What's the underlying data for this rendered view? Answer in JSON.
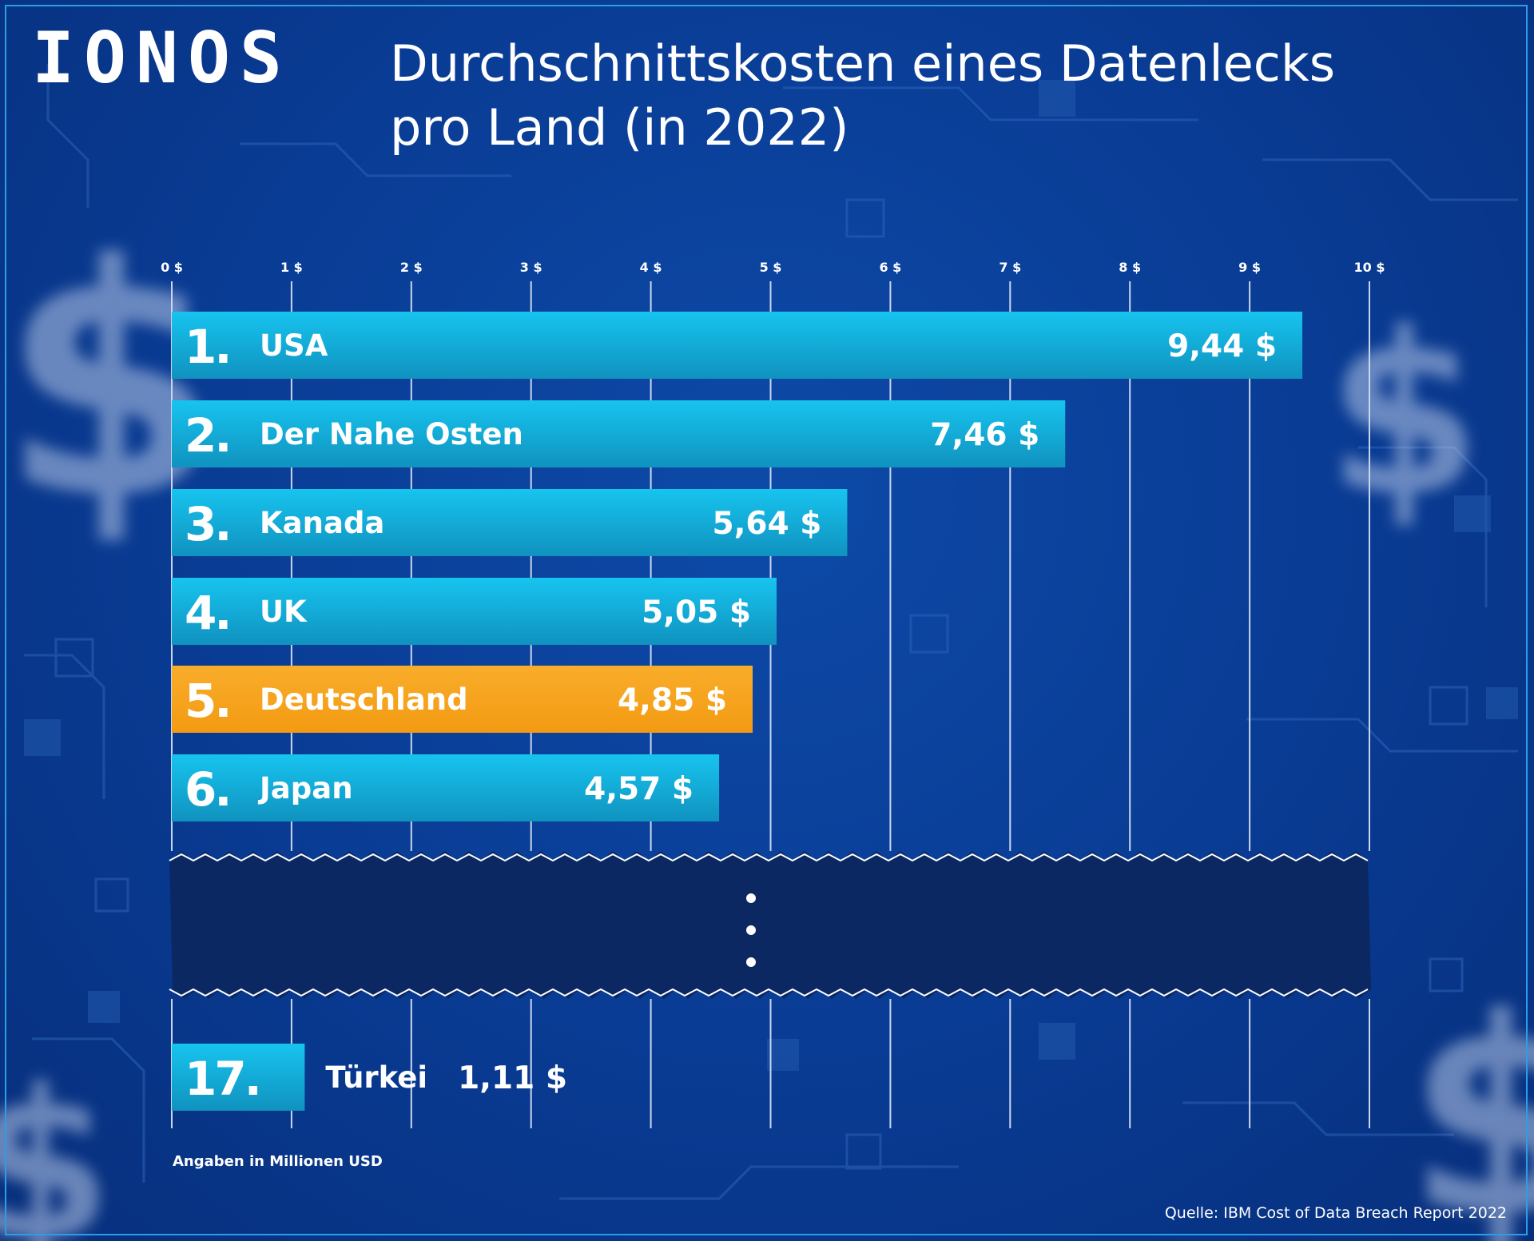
{
  "logo": "IONOS",
  "title_lines": [
    "Durchschnittskosten eines Datenlecks",
    "pro Land (in 2022)"
  ],
  "footnote": "Angaben in Millionen USD",
  "source": "Quelle: IBM Cost of Data Breach Report 2022",
  "colors": {
    "bar": "#1aaed8",
    "bar_highlight": "#f7a21b",
    "text": "#ffffff",
    "gridline": "#c9d6ef",
    "break_band": "#0b2863"
  },
  "chart_data": {
    "type": "bar",
    "orientation": "horizontal",
    "xlim": [
      0,
      10
    ],
    "ticks": [
      "0 $",
      "1 $",
      "2 $",
      "3 $",
      "4 $",
      "5 $",
      "6 $",
      "7 $",
      "8 $",
      "9 $",
      "10 $"
    ],
    "tick_values": [
      0,
      1,
      2,
      3,
      4,
      5,
      6,
      7,
      8,
      9,
      10
    ],
    "grid": true,
    "axis_break_after_rank": 6,
    "bars": [
      {
        "rank": "1.",
        "label": "USA",
        "value": 9.44,
        "value_label": "9,44 $",
        "highlight": false
      },
      {
        "rank": "2.",
        "label": "Der Nahe Osten",
        "value": 7.46,
        "value_label": "7,46 $",
        "highlight": false
      },
      {
        "rank": "3.",
        "label": "Kanada",
        "value": 5.64,
        "value_label": "5,64 $",
        "highlight": false
      },
      {
        "rank": "4.",
        "label": "UK",
        "value": 5.05,
        "value_label": "5,05 $",
        "highlight": false
      },
      {
        "rank": "5.",
        "label": "Deutschland",
        "value": 4.85,
        "value_label": "4,85 $",
        "highlight": true
      },
      {
        "rank": "6.",
        "label": "Japan",
        "value": 4.57,
        "value_label": "4,57 $",
        "highlight": false
      },
      {
        "rank": "17.",
        "label": "Türkei",
        "value": 1.11,
        "value_label": "1,11 $",
        "highlight": false
      }
    ]
  }
}
